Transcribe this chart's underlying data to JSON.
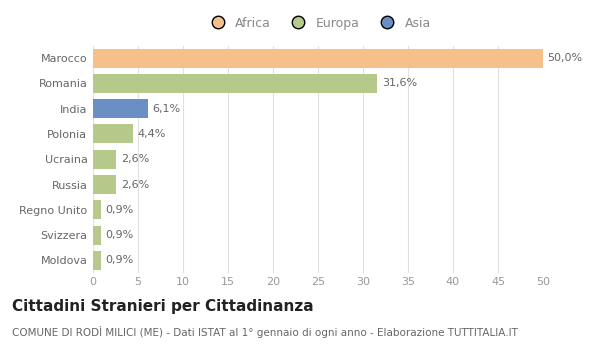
{
  "categories": [
    "Marocco",
    "Romania",
    "India",
    "Polonia",
    "Ucraina",
    "Russia",
    "Regno Unito",
    "Svizzera",
    "Moldova"
  ],
  "values": [
    50.0,
    31.6,
    6.1,
    4.4,
    2.6,
    2.6,
    0.9,
    0.9,
    0.9
  ],
  "colors": [
    "#F5C08A",
    "#B5C98A",
    "#6B8EC4",
    "#B5C98A",
    "#B5C98A",
    "#B5C98A",
    "#B5C98A",
    "#B5C98A",
    "#B5C98A"
  ],
  "labels": [
    "50,0%",
    "31,6%",
    "6,1%",
    "4,4%",
    "2,6%",
    "2,6%",
    "0,9%",
    "0,9%",
    "0,9%"
  ],
  "legend_labels": [
    "Africa",
    "Europa",
    "Asia"
  ],
  "legend_colors": [
    "#F5C08A",
    "#B5C98A",
    "#6B8EC4"
  ],
  "xlim": [
    0,
    50
  ],
  "xticks": [
    0,
    5,
    10,
    15,
    20,
    25,
    30,
    35,
    40,
    45,
    50
  ],
  "title": "Cittadini Stranieri per Cittadinanza",
  "subtitle": "COMUNE DI RODÌ MILICI (ME) - Dati ISTAT al 1° gennaio di ogni anno - Elaborazione TUTTITALIA.IT",
  "background_color": "#ffffff",
  "grid_color": "#e0e0e0",
  "bar_height": 0.75,
  "title_fontsize": 11,
  "subtitle_fontsize": 7.5,
  "label_fontsize": 8,
  "tick_fontsize": 8,
  "legend_fontsize": 9,
  "ytick_fontsize": 8,
  "ytick_color": "#666666",
  "xtick_color": "#999999",
  "label_color": "#666666"
}
